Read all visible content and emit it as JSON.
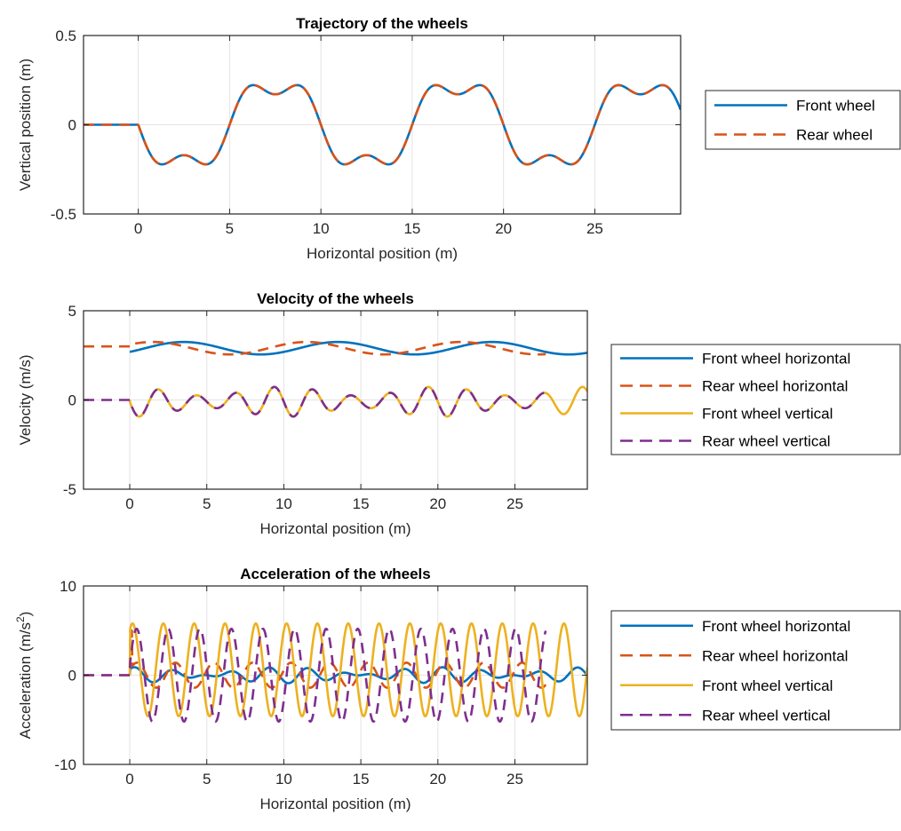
{
  "colors": {
    "front_horizontal": "#0072BD",
    "rear_horizontal": "#D95319",
    "front_vertical": "#EDB120",
    "rear_vertical": "#7E2F8E",
    "grid": "#e3e3e3",
    "axis": "#262626"
  },
  "chart_data": [
    {
      "type": "line",
      "title": "Trajectory of the wheels",
      "xlabel": "Horizontal position (m)",
      "ylabel": "Vertical position (m)",
      "xlim": [
        -3,
        29.7
      ],
      "ylim": [
        -0.5,
        0.5
      ],
      "xticks": [
        0,
        5,
        10,
        15,
        20,
        25
      ],
      "yticks": [
        -0.5,
        0,
        0.5
      ],
      "ytick_labels": [
        "-0.5",
        "0",
        "0.5"
      ],
      "grid": "vertical",
      "legend_position": "outside-right",
      "series": [
        {
          "name": "Front wheel",
          "style": "solid",
          "color_key": "front_horizontal",
          "curve": "road",
          "x_start": -3,
          "x_end": 29.7
        },
        {
          "name": "Rear wheel",
          "style": "dashed",
          "color_key": "rear_horizontal",
          "curve": "road",
          "x_start": -3,
          "x_end": 29.2
        }
      ]
    },
    {
      "type": "line",
      "title": "Velocity of the wheels",
      "xlabel": "Horizontal position (m)",
      "ylabel": "Velocity (m/s)",
      "xlim": [
        -3,
        29.7
      ],
      "ylim": [
        -5,
        5
      ],
      "xticks": [
        0,
        5,
        10,
        15,
        20,
        25
      ],
      "yticks": [
        -5,
        0,
        5
      ],
      "ytick_labels": [
        "-5",
        "0",
        "5"
      ],
      "grid": "vertical",
      "legend_position": "outside-right",
      "series": [
        {
          "name": "Front wheel horizontal",
          "style": "solid",
          "color_key": "front_horizontal",
          "curve": "vx_front",
          "x_start": 0,
          "x_end": 29.7
        },
        {
          "name": "Rear wheel horizontal",
          "style": "dashed",
          "color_key": "rear_horizontal",
          "curve": "vx_rear",
          "x_start": -3,
          "x_end": 27
        },
        {
          "name": "Front wheel vertical",
          "style": "solid",
          "color_key": "front_vertical",
          "curve": "vy",
          "x_start": 0,
          "x_end": 29.7
        },
        {
          "name": "Rear wheel vertical",
          "style": "dashed",
          "color_key": "rear_vertical",
          "curve": "vy",
          "x_start": -3,
          "x_end": 27
        }
      ]
    },
    {
      "type": "line",
      "title": "Acceleration of the wheels",
      "xlabel": "Horizontal position (m)",
      "ylabel": "Acceleration (m/s",
      "ylabel_superscript": "2",
      "ylabel_suffix": ")",
      "xlim": [
        -3,
        29.7
      ],
      "ylim": [
        -10,
        10
      ],
      "xticks": [
        0,
        5,
        10,
        15,
        20,
        25
      ],
      "yticks": [
        -10,
        0,
        10
      ],
      "ytick_labels": [
        "-10",
        "0",
        "10"
      ],
      "grid": "vertical",
      "legend_position": "outside-right",
      "series": [
        {
          "name": "Front wheel horizontal",
          "style": "solid",
          "color_key": "front_horizontal",
          "curve": "ax",
          "x_start": 0,
          "x_end": 29.7
        },
        {
          "name": "Rear wheel horizontal",
          "style": "dashed",
          "color_key": "rear_horizontal",
          "curve": "ax_rear",
          "x_start": -3,
          "x_end": 27
        },
        {
          "name": "Front wheel vertical",
          "style": "solid",
          "color_key": "front_vertical",
          "curve": "ay",
          "x_start": 0,
          "x_end": 29.7
        },
        {
          "name": "Rear wheel vertical",
          "style": "dashed",
          "color_key": "rear_vertical",
          "curve": "ay_rear",
          "x_start": -3,
          "x_end": 27
        }
      ]
    }
  ]
}
